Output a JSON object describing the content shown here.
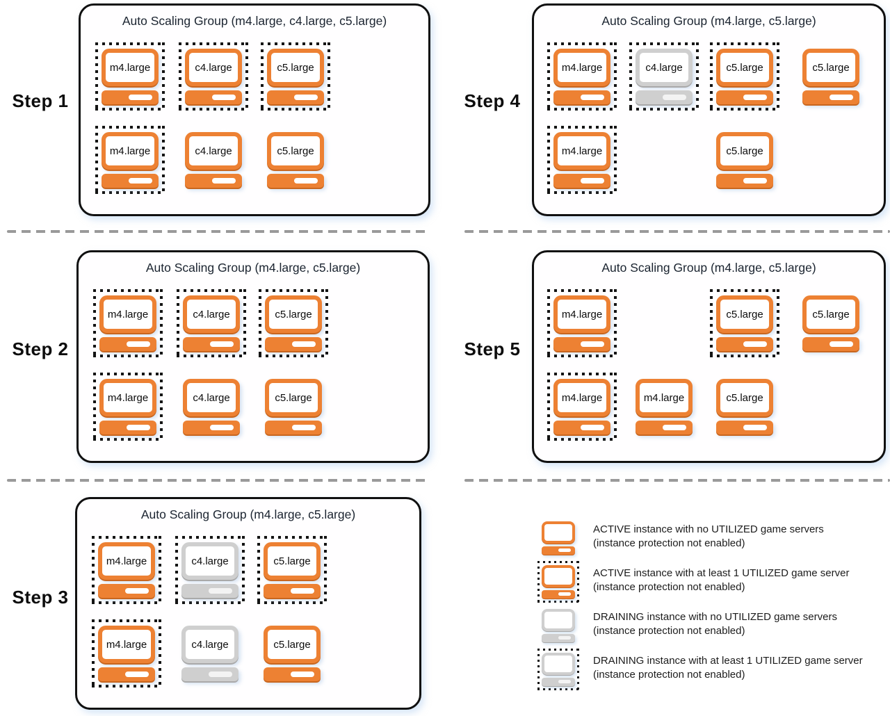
{
  "colors": {
    "orange": "#ED8133",
    "orange_dark": "#C8661F",
    "gray": "#CFCFCF",
    "gray_dark": "#A9A9A9",
    "dot_black": "#141414",
    "divider_gray": "#9A9A9A"
  },
  "steps": [
    {
      "label": "Step 1",
      "title": "Auto Scaling Group (m4.large, c4.large, c5.large)",
      "instances": [
        {
          "type": "m4.large",
          "state": "ACTIVE",
          "utilized": true,
          "row": 1,
          "col": 1
        },
        {
          "type": "c4.large",
          "state": "ACTIVE",
          "utilized": true,
          "row": 1,
          "col": 2
        },
        {
          "type": "c5.large",
          "state": "ACTIVE",
          "utilized": true,
          "row": 1,
          "col": 3
        },
        {
          "type": "m4.large",
          "state": "ACTIVE",
          "utilized": true,
          "row": 2,
          "col": 1
        },
        {
          "type": "c4.large",
          "state": "ACTIVE",
          "utilized": false,
          "row": 2,
          "col": 2
        },
        {
          "type": "c5.large",
          "state": "ACTIVE",
          "utilized": false,
          "row": 2,
          "col": 3
        }
      ]
    },
    {
      "label": "Step 2",
      "title": "Auto Scaling Group (m4.large, c5.large)",
      "instances": [
        {
          "type": "m4.large",
          "state": "ACTIVE",
          "utilized": true,
          "row": 1,
          "col": 1
        },
        {
          "type": "c4.large",
          "state": "ACTIVE",
          "utilized": true,
          "row": 1,
          "col": 2
        },
        {
          "type": "c5.large",
          "state": "ACTIVE",
          "utilized": true,
          "row": 1,
          "col": 3
        },
        {
          "type": "m4.large",
          "state": "ACTIVE",
          "utilized": true,
          "row": 2,
          "col": 1
        },
        {
          "type": "c4.large",
          "state": "ACTIVE",
          "utilized": false,
          "row": 2,
          "col": 2
        },
        {
          "type": "c5.large",
          "state": "ACTIVE",
          "utilized": false,
          "row": 2,
          "col": 3
        }
      ]
    },
    {
      "label": "Step 3",
      "title": "Auto Scaling Group (m4.large, c5.large)",
      "instances": [
        {
          "type": "m4.large",
          "state": "ACTIVE",
          "utilized": true,
          "row": 1,
          "col": 1
        },
        {
          "type": "c4.large",
          "state": "DRAINING",
          "utilized": true,
          "row": 1,
          "col": 2
        },
        {
          "type": "c5.large",
          "state": "ACTIVE",
          "utilized": true,
          "row": 1,
          "col": 3
        },
        {
          "type": "m4.large",
          "state": "ACTIVE",
          "utilized": true,
          "row": 2,
          "col": 1
        },
        {
          "type": "c4.large",
          "state": "DRAINING",
          "utilized": false,
          "row": 2,
          "col": 2
        },
        {
          "type": "c5.large",
          "state": "ACTIVE",
          "utilized": false,
          "row": 2,
          "col": 3
        }
      ]
    },
    {
      "label": "Step 4",
      "title": "Auto Scaling Group (m4.large, c5.large)",
      "instances": [
        {
          "type": "m4.large",
          "state": "ACTIVE",
          "utilized": true,
          "row": 1,
          "col": 1
        },
        {
          "type": "c4.large",
          "state": "DRAINING",
          "utilized": true,
          "row": 1,
          "col": 2
        },
        {
          "type": "c5.large",
          "state": "ACTIVE",
          "utilized": true,
          "row": 1,
          "col": 3
        },
        {
          "type": "c5.large",
          "state": "ACTIVE",
          "utilized": false,
          "row": 1,
          "col": 4
        },
        {
          "type": "m4.large",
          "state": "ACTIVE",
          "utilized": true,
          "row": 2,
          "col": 1
        },
        {
          "type": "c5.large",
          "state": "ACTIVE",
          "utilized": false,
          "row": 2,
          "col": 3
        }
      ]
    },
    {
      "label": "Step 5",
      "title": "Auto Scaling Group (m4.large, c5.large)",
      "instances": [
        {
          "type": "m4.large",
          "state": "ACTIVE",
          "utilized": true,
          "row": 1,
          "col": 1
        },
        {
          "type": "c5.large",
          "state": "ACTIVE",
          "utilized": true,
          "row": 1,
          "col": 3
        },
        {
          "type": "c5.large",
          "state": "ACTIVE",
          "utilized": false,
          "row": 1,
          "col": 4
        },
        {
          "type": "m4.large",
          "state": "ACTIVE",
          "utilized": true,
          "row": 2,
          "col": 1
        },
        {
          "type": "m4.large",
          "state": "ACTIVE",
          "utilized": false,
          "row": 2,
          "col": 2
        },
        {
          "type": "c5.large",
          "state": "ACTIVE",
          "utilized": false,
          "row": 2,
          "col": 3
        }
      ]
    }
  ],
  "legend": [
    {
      "icon": "active-no-utilized",
      "state": "ACTIVE",
      "utilized": false,
      "line1": "ACTIVE instance with no UTILIZED game servers",
      "line2": "(instance protection not enabled)"
    },
    {
      "icon": "active-utilized",
      "state": "ACTIVE",
      "utilized": true,
      "line1": "ACTIVE instance with at least 1 UTILIZED game server",
      "line2": "(instance protection not enabled)"
    },
    {
      "icon": "draining-no-utilized",
      "state": "DRAINING",
      "utilized": false,
      "line1": "DRAINING instance with no UTILIZED game servers",
      "line2": "(instance protection not enabled)"
    },
    {
      "icon": "draining-utilized",
      "state": "DRAINING",
      "utilized": true,
      "line1": "DRAINING instance with at least 1 UTILIZED game server",
      "line2": "(instance protection not enabled)"
    }
  ]
}
